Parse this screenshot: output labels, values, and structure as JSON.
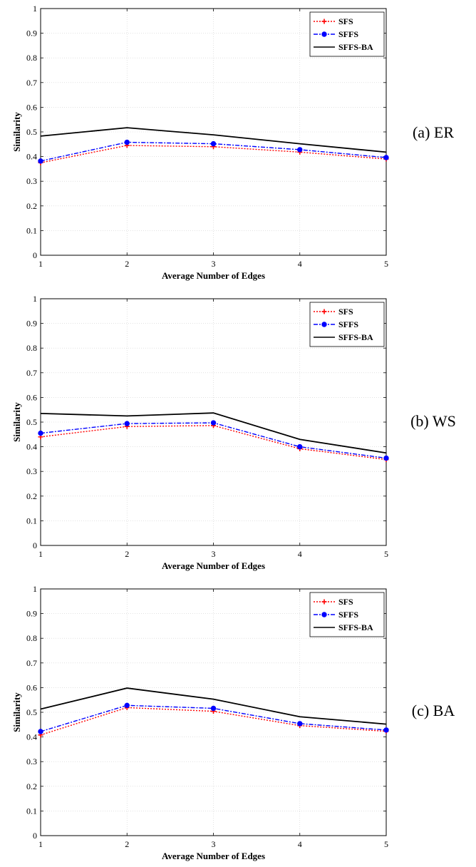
{
  "chart_data": [
    {
      "type": "line",
      "caption": "(a) ER",
      "xlabel": "Average Number of Edges",
      "ylabel": "Similarity",
      "x": [
        1,
        2,
        3,
        4,
        5
      ],
      "xlim": [
        1,
        5
      ],
      "ylim": [
        0,
        1
      ],
      "xticks": [
        "1",
        "2",
        "3",
        "4",
        "5"
      ],
      "yticks": [
        "0",
        "0.1",
        "0.2",
        "0.3",
        "0.4",
        "0.5",
        "0.6",
        "0.7",
        "0.8",
        "0.9",
        "1"
      ],
      "grid": true,
      "legend_position": "top-right",
      "series": [
        {
          "name": "SFS",
          "color": "#ff0000",
          "style": "dotted",
          "marker": "plus",
          "values": [
            0.375,
            0.445,
            0.44,
            0.418,
            0.39
          ]
        },
        {
          "name": "SFFS",
          "color": "#0000ff",
          "style": "dashdot",
          "marker": "dot",
          "values": [
            0.382,
            0.458,
            0.452,
            0.428,
            0.396
          ]
        },
        {
          "name": "SFFS-BA",
          "color": "#000000",
          "style": "solid",
          "marker": "none",
          "values": [
            0.483,
            0.517,
            0.488,
            0.452,
            0.418
          ]
        }
      ]
    },
    {
      "type": "line",
      "caption": "(b) WS",
      "xlabel": "Average Number of Edges",
      "ylabel": "Similarity",
      "x": [
        1,
        2,
        3,
        4,
        5
      ],
      "xlim": [
        1,
        5
      ],
      "ylim": [
        0,
        1
      ],
      "xticks": [
        "1",
        "2",
        "3",
        "4",
        "5"
      ],
      "yticks": [
        "0",
        "0.1",
        "0.2",
        "0.3",
        "0.4",
        "0.5",
        "0.6",
        "0.7",
        "0.8",
        "0.9",
        "1"
      ],
      "grid": true,
      "legend_position": "top-right",
      "series": [
        {
          "name": "SFS",
          "color": "#ff0000",
          "style": "dotted",
          "marker": "plus",
          "values": [
            0.44,
            0.482,
            0.486,
            0.392,
            0.348
          ]
        },
        {
          "name": "SFFS",
          "color": "#0000ff",
          "style": "dashdot",
          "marker": "dot",
          "values": [
            0.455,
            0.494,
            0.497,
            0.4,
            0.354
          ]
        },
        {
          "name": "SFFS-BA",
          "color": "#000000",
          "style": "solid",
          "marker": "none",
          "values": [
            0.535,
            0.525,
            0.537,
            0.43,
            0.375
          ]
        }
      ]
    },
    {
      "type": "line",
      "caption": "(c) BA",
      "xlabel": "Average Number of Edges",
      "ylabel": "Similarity",
      "x": [
        1,
        2,
        3,
        4,
        5
      ],
      "xlim": [
        1,
        5
      ],
      "ylim": [
        0,
        1
      ],
      "xticks": [
        "1",
        "2",
        "3",
        "4",
        "5"
      ],
      "yticks": [
        "0",
        "0.1",
        "0.2",
        "0.3",
        "0.4",
        "0.5",
        "0.6",
        "0.7",
        "0.8",
        "0.9",
        "1"
      ],
      "grid": true,
      "legend_position": "top-right",
      "series": [
        {
          "name": "SFS",
          "color": "#ff0000",
          "style": "dotted",
          "marker": "plus",
          "values": [
            0.408,
            0.519,
            0.504,
            0.446,
            0.423
          ]
        },
        {
          "name": "SFFS",
          "color": "#0000ff",
          "style": "dashdot",
          "marker": "dot",
          "values": [
            0.422,
            0.528,
            0.516,
            0.454,
            0.428
          ]
        },
        {
          "name": "SFFS-BA",
          "color": "#000000",
          "style": "solid",
          "marker": "none",
          "values": [
            0.513,
            0.598,
            0.553,
            0.482,
            0.452
          ]
        }
      ]
    }
  ]
}
